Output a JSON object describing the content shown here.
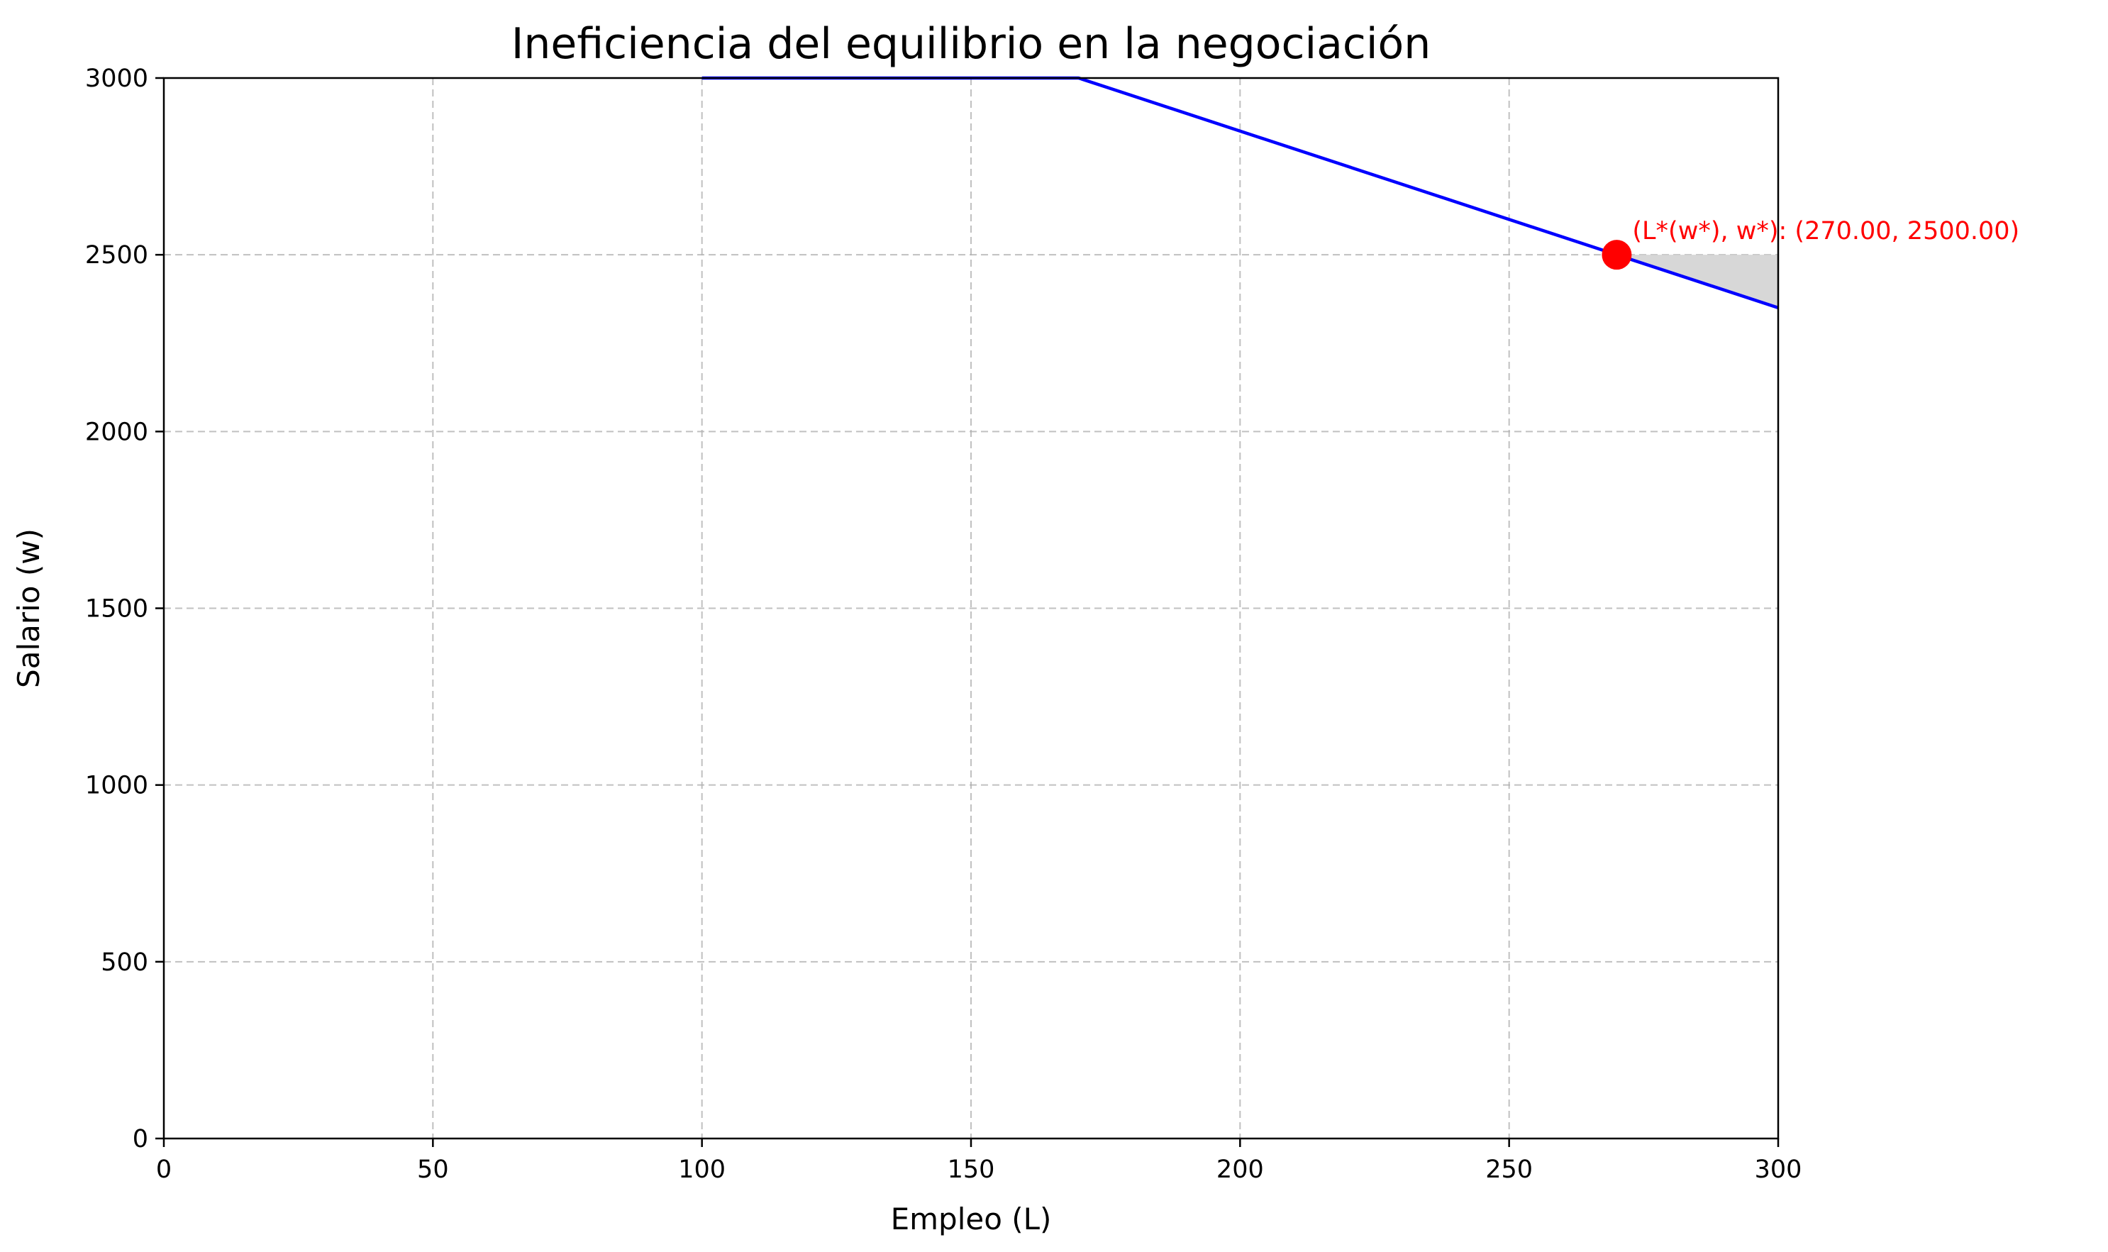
{
  "chart_data": {
    "type": "line",
    "title": "Ineficiencia del equilibrio en la negociación",
    "xlabel": "Empleo (L)",
    "ylabel": "Salario (w)",
    "xlim": [
      0,
      300
    ],
    "ylim": [
      0,
      3000
    ],
    "xticks": [
      0,
      50,
      100,
      150,
      200,
      250,
      300
    ],
    "yticks": [
      0,
      500,
      1000,
      1500,
      2000,
      2500,
      3000
    ],
    "grid": true,
    "series": [
      {
        "x": [
          100,
          170,
          300
        ],
        "y": [
          3000,
          3000,
          2350
        ],
        "color": "#0000ff"
      }
    ],
    "shaded_region": {
      "x": [
        270,
        300
      ],
      "y_top": [
        2500,
        2500
      ],
      "y_bottom": [
        2500,
        2350
      ],
      "color": "#d3d3d3"
    },
    "points": [
      {
        "x": 270,
        "y": 2500,
        "color": "#ff0000",
        "label": "(L*(w*), w*): (270.00, 2500.00)"
      }
    ]
  }
}
